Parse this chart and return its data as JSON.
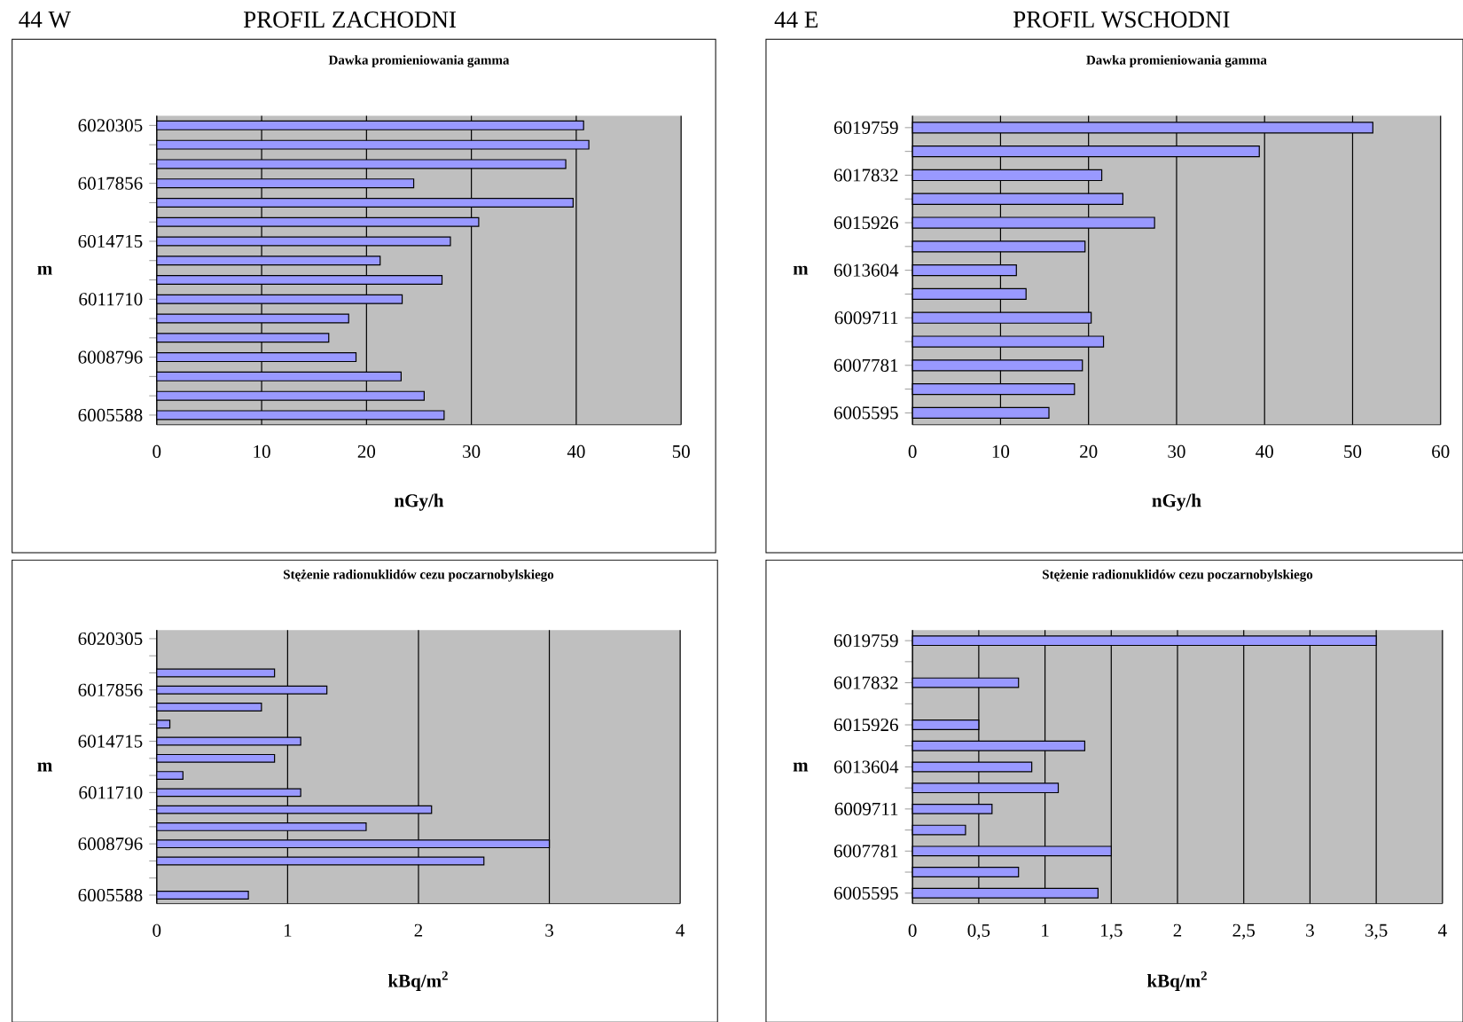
{
  "chart_data": [
    {
      "type": "bar",
      "orientation": "horizontal",
      "title": "Dawka promieniowania gamma",
      "xlabel": "nGy/h",
      "ylabel": "m",
      "categories": [
        "6020305",
        null,
        null,
        "6017856",
        null,
        null,
        "6014715",
        null,
        null,
        "6011710",
        null,
        null,
        "6008796",
        null,
        null,
        "6005588"
      ],
      "values": [
        40.7,
        41.2,
        39.0,
        24.5,
        39.7,
        30.7,
        28.0,
        21.3,
        27.2,
        23.4,
        18.3,
        16.4,
        19.0,
        23.3,
        25.5,
        27.4
      ],
      "color": "#9999ff",
      "xlim": [
        0,
        50
      ],
      "xticks": [
        0,
        10,
        20,
        30,
        40,
        50
      ],
      "grid": "x",
      "annotations": [
        "44 W",
        "PROFIL ZACHODNI"
      ]
    },
    {
      "type": "bar",
      "orientation": "horizontal",
      "title": "Dawka promieniowania gamma",
      "xlabel": "nGy/h",
      "ylabel": "m",
      "categories": [
        "6019759",
        null,
        "6017832",
        null,
        "6015926",
        null,
        "6013604",
        null,
        "6009711",
        null,
        "6007781",
        null,
        "6005595"
      ],
      "values": [
        52.3,
        39.4,
        21.5,
        23.9,
        27.5,
        19.6,
        11.8,
        12.9,
        20.3,
        21.7,
        19.3,
        18.4,
        15.5
      ],
      "color": "#9999ff",
      "xlim": [
        0,
        60
      ],
      "xticks": [
        0,
        10,
        20,
        30,
        40,
        50,
        60
      ],
      "grid": "x",
      "annotations": [
        "44 E",
        "PROFIL WSCHODNI"
      ]
    },
    {
      "type": "bar",
      "orientation": "horizontal",
      "title": "Stężenie radionuklidów cezu poczarnobylskiego",
      "xlabel": "kBq/m$^{2}$",
      "ylabel": "m",
      "categories": [
        "6020305",
        null,
        null,
        "6017856",
        null,
        null,
        "6014715",
        null,
        null,
        "6011710",
        null,
        null,
        "6008796",
        null,
        null,
        "6005588"
      ],
      "values": [
        null,
        null,
        0.9,
        1.3,
        0.8,
        0.1,
        1.1,
        0.9,
        0.2,
        1.1,
        2.1,
        1.6,
        3.0,
        2.5,
        null,
        0.7
      ],
      "color": "#9999ff",
      "xlim": [
        0,
        4
      ],
      "xticks": [
        0,
        1,
        2,
        3,
        4
      ],
      "grid": "x"
    },
    {
      "type": "bar",
      "orientation": "horizontal",
      "title": "Stężenie radionuklidów cezu poczarnobylskiego",
      "xlabel": "kBq/m$^{2}$",
      "ylabel": "m",
      "categories": [
        "6019759",
        null,
        "6017832",
        null,
        "6015926",
        null,
        "6013604",
        null,
        "6009711",
        null,
        "6007781",
        null,
        "6005595"
      ],
      "values": [
        3.5,
        null,
        0.8,
        null,
        0.5,
        1.3,
        0.9,
        1.1,
        0.6,
        0.4,
        1.5,
        0.8,
        1.4
      ],
      "color": "#9999ff",
      "xlim": [
        0,
        4
      ],
      "xticks": [
        0,
        {
          "value": 0.5,
          "label": "0,5"
        },
        1,
        {
          "value": 1.5,
          "label": "1,5"
        },
        2,
        {
          "value": 2.5,
          "label": "2,5"
        },
        3,
        {
          "value": 3.5,
          "label": "3,5"
        },
        4
      ],
      "grid": "x"
    }
  ]
}
